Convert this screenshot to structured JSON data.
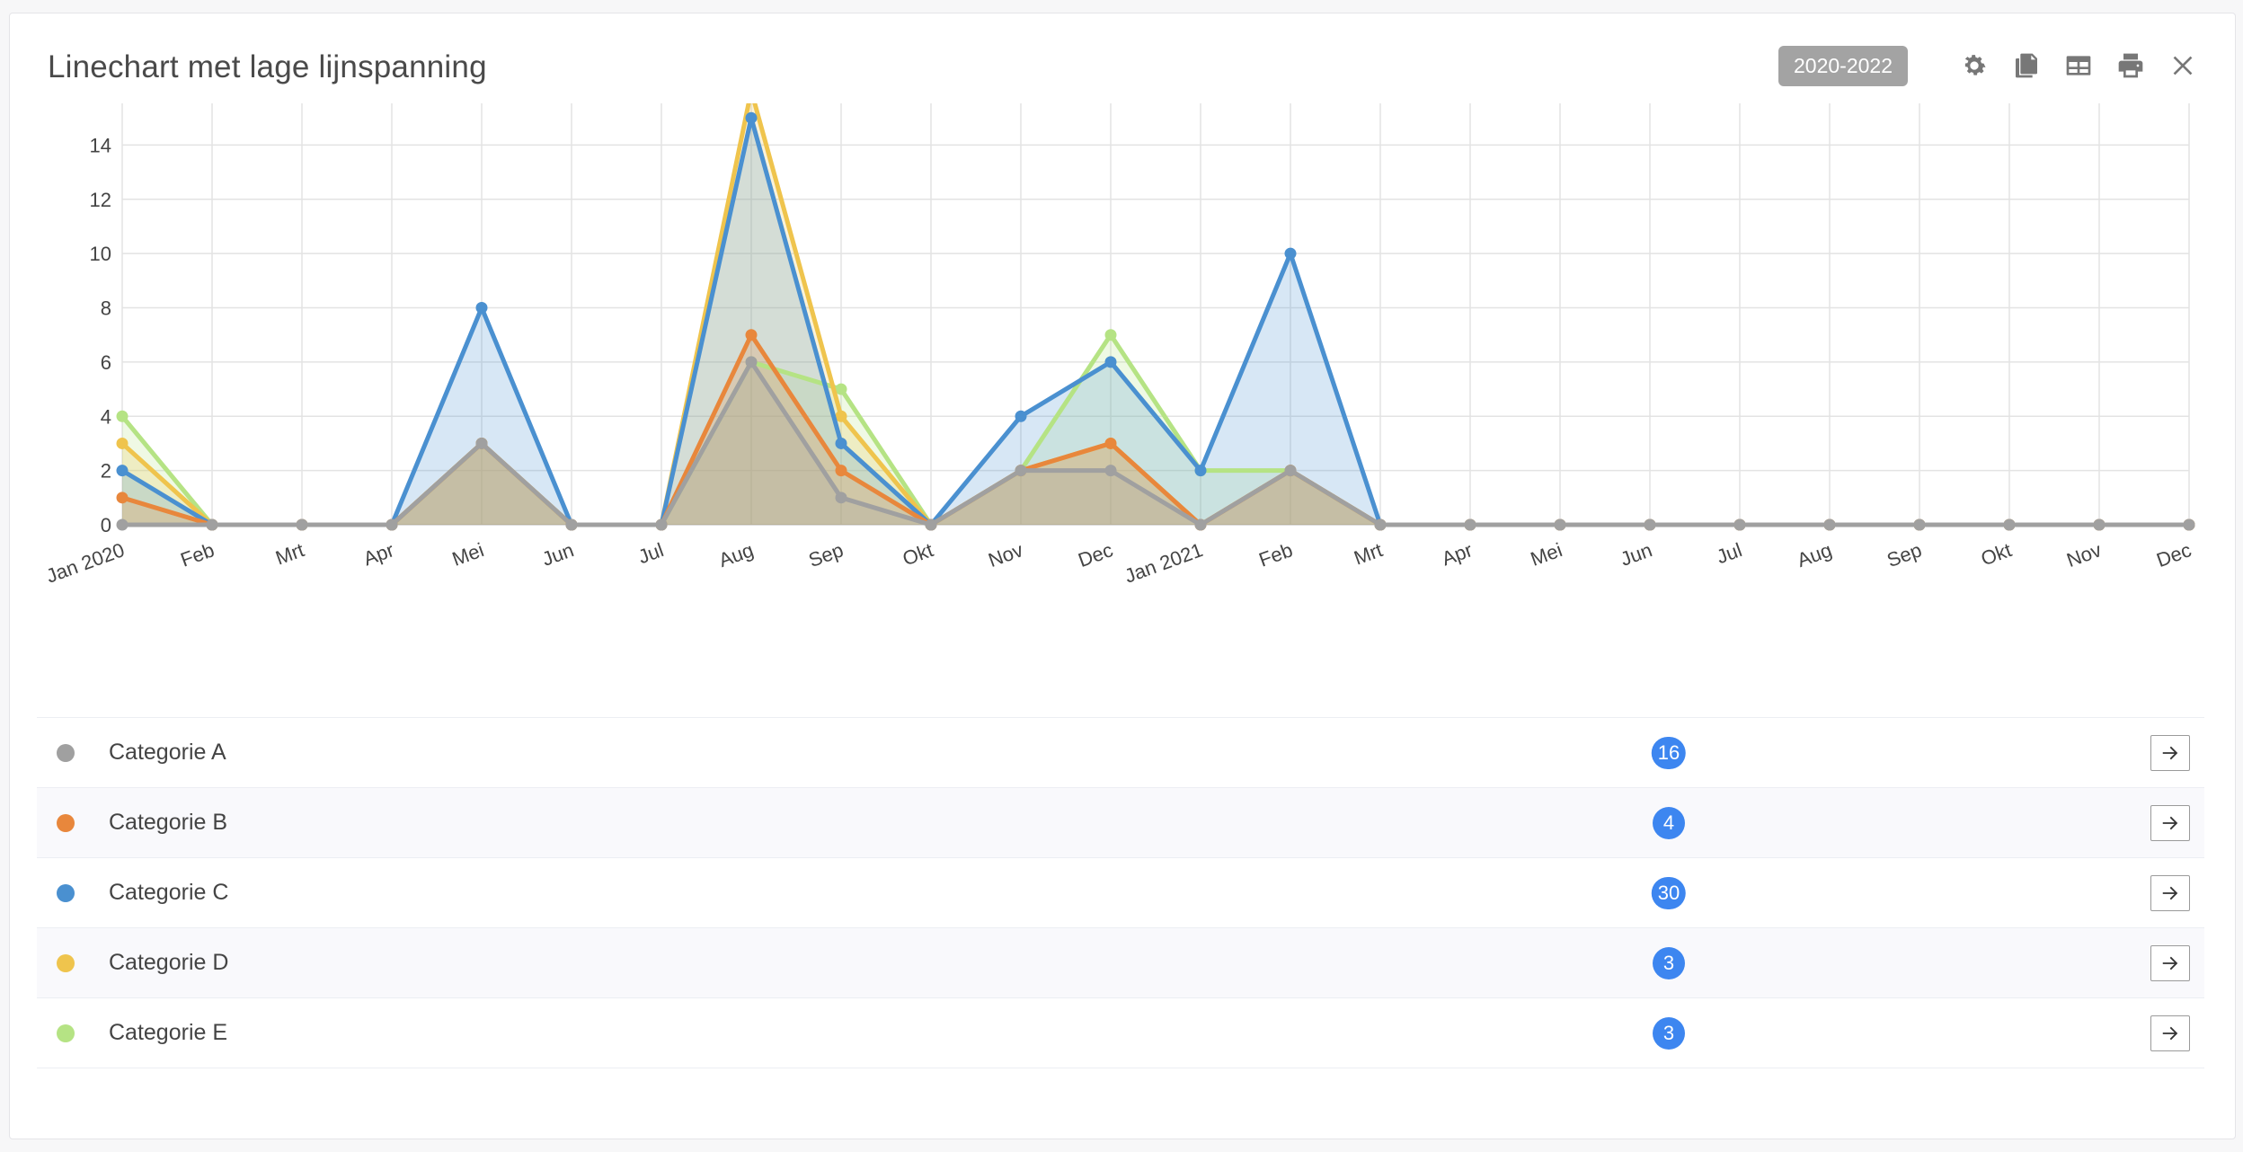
{
  "widget": {
    "title": "Linechart met lage lijnspanning",
    "range_badge": "2020-2022",
    "tools": [
      "settings-icon",
      "copy-icon",
      "table-icon",
      "print-icon",
      "close-icon"
    ]
  },
  "chart_data": {
    "type": "area",
    "categories": [
      "Jan 2020",
      "Feb",
      "Mrt",
      "Apr",
      "Mei",
      "Jun",
      "Jul",
      "Aug",
      "Sep",
      "Okt",
      "Nov",
      "Dec",
      "Jan 2021",
      "Feb",
      "Mrt",
      "Apr",
      "Mei",
      "Jun",
      "Jul",
      "Aug",
      "Sep",
      "Okt",
      "Nov",
      "Dec"
    ],
    "ylim": [
      0,
      16
    ],
    "yticks": [
      0,
      2,
      4,
      6,
      8,
      10,
      12,
      14,
      16
    ],
    "grid": true,
    "series": [
      {
        "name": "Categorie E",
        "color": "#b5e384",
        "values": [
          4,
          0,
          0,
          0,
          3,
          0,
          0,
          6,
          5,
          0,
          2,
          7,
          2,
          2,
          0,
          0,
          0,
          0,
          0,
          0,
          0,
          0,
          0,
          0
        ]
      },
      {
        "name": "Categorie D",
        "color": "#efc44d",
        "values": [
          3,
          0,
          0,
          0,
          3,
          0,
          0,
          16,
          4,
          0,
          2,
          3,
          0,
          2,
          0,
          0,
          0,
          0,
          0,
          0,
          0,
          0,
          0,
          0
        ]
      },
      {
        "name": "Categorie C",
        "color": "#4a90d0",
        "values": [
          2,
          0,
          0,
          0,
          8,
          0,
          0,
          15,
          3,
          0,
          4,
          6,
          2,
          10,
          0,
          0,
          0,
          0,
          0,
          0,
          0,
          0,
          0,
          0
        ]
      },
      {
        "name": "Categorie B",
        "color": "#e8873c",
        "values": [
          1,
          0,
          0,
          0,
          3,
          0,
          0,
          7,
          2,
          0,
          2,
          3,
          0,
          2,
          0,
          0,
          0,
          0,
          0,
          0,
          0,
          0,
          0,
          0
        ]
      },
      {
        "name": "Categorie A",
        "color": "#a0a0a0",
        "values": [
          0,
          0,
          0,
          0,
          3,
          0,
          0,
          6,
          1,
          0,
          2,
          2,
          0,
          2,
          0,
          0,
          0,
          0,
          0,
          0,
          0,
          0,
          0,
          0
        ]
      }
    ]
  },
  "legend": [
    {
      "label": "Categorie A",
      "color": "#a0a0a0",
      "count": "16"
    },
    {
      "label": "Categorie B",
      "color": "#e8873c",
      "count": "4"
    },
    {
      "label": "Categorie C",
      "color": "#4a90d0",
      "count": "30"
    },
    {
      "label": "Categorie D",
      "color": "#efc44d",
      "count": "3"
    },
    {
      "label": "Categorie E",
      "color": "#b5e384",
      "count": "3"
    }
  ]
}
